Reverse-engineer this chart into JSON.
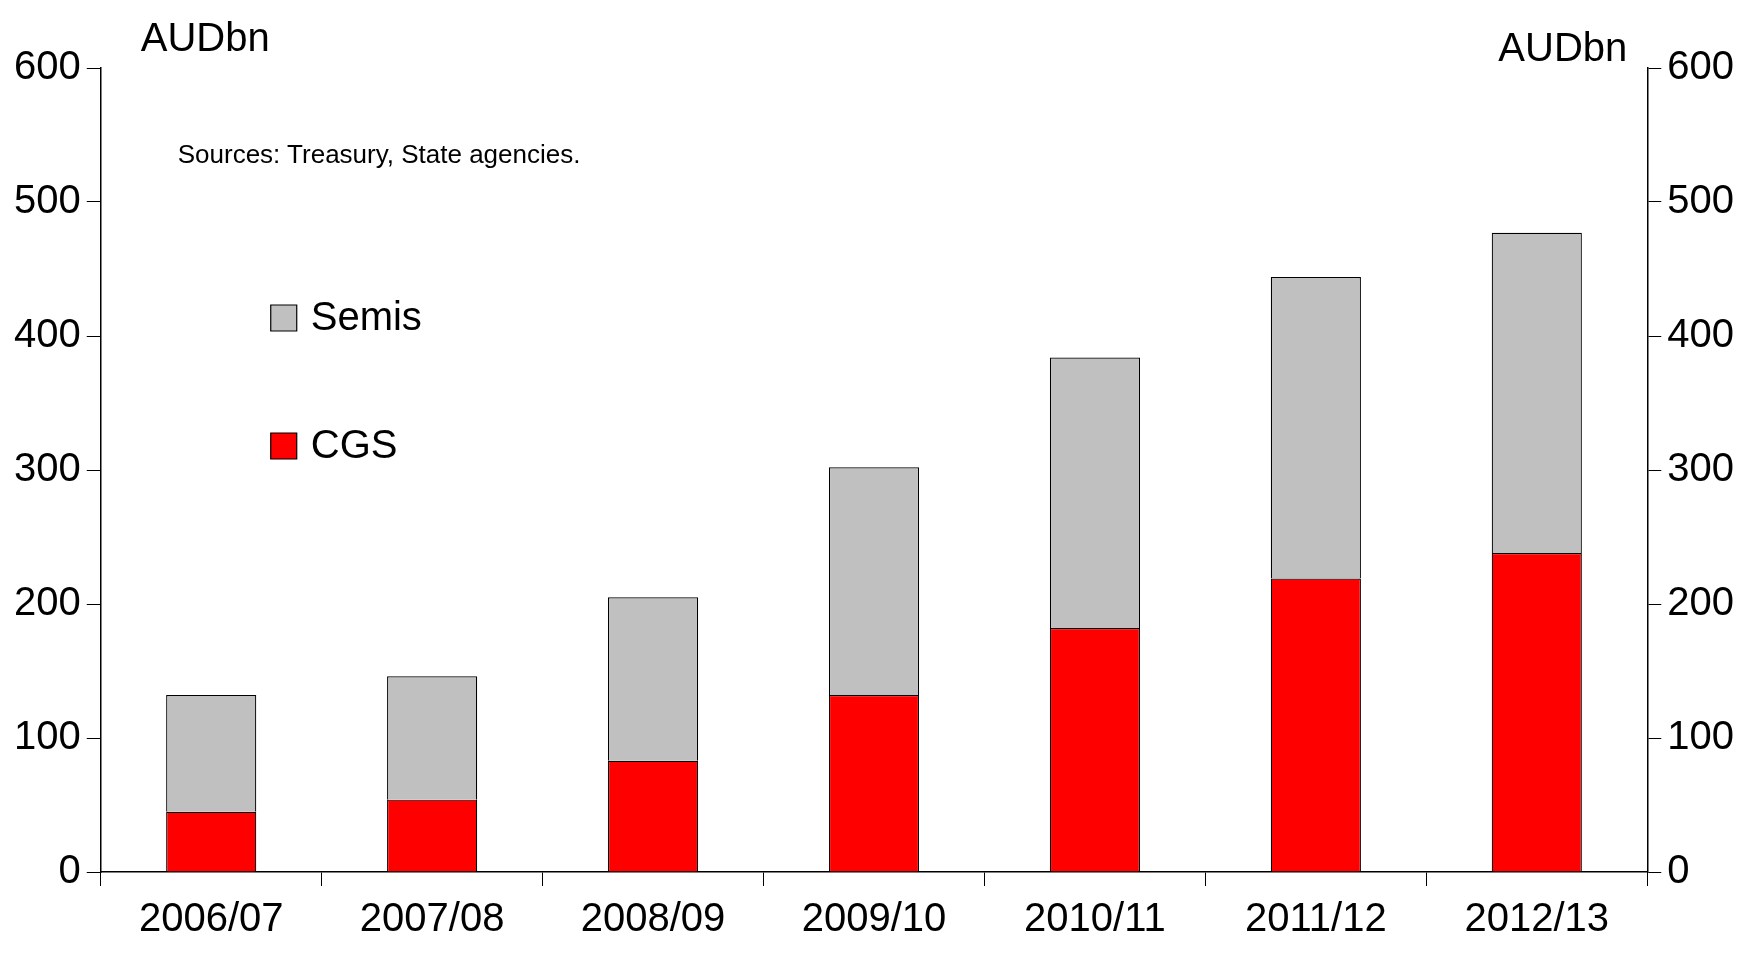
{
  "chart_data": {
    "type": "bar",
    "stacked": true,
    "categories": [
      "2006/07",
      "2007/08",
      "2008/09",
      "2009/10",
      "2010/11",
      "2011/12",
      "2012/13"
    ],
    "series": [
      {
        "name": "CGS",
        "color": "#ff0000",
        "values": [
          45,
          54,
          83,
          132,
          182,
          219,
          238
        ]
      },
      {
        "name": "Semis",
        "color": "#c0c0c0",
        "values": [
          87,
          92,
          122,
          170,
          202,
          225,
          239
        ]
      }
    ],
    "ylabel": "AUDbn",
    "y2label": "AUDbn",
    "ylim": [
      0,
      600
    ],
    "yticks": [
      0,
      100,
      200,
      300,
      400,
      500,
      600
    ],
    "y2lim": [
      0,
      600
    ],
    "y2ticks": [
      0,
      100,
      200,
      300,
      400,
      500,
      600
    ],
    "grid": false,
    "legend": "top left",
    "annotations": [
      "Sources: Treasury, State agencies."
    ]
  }
}
